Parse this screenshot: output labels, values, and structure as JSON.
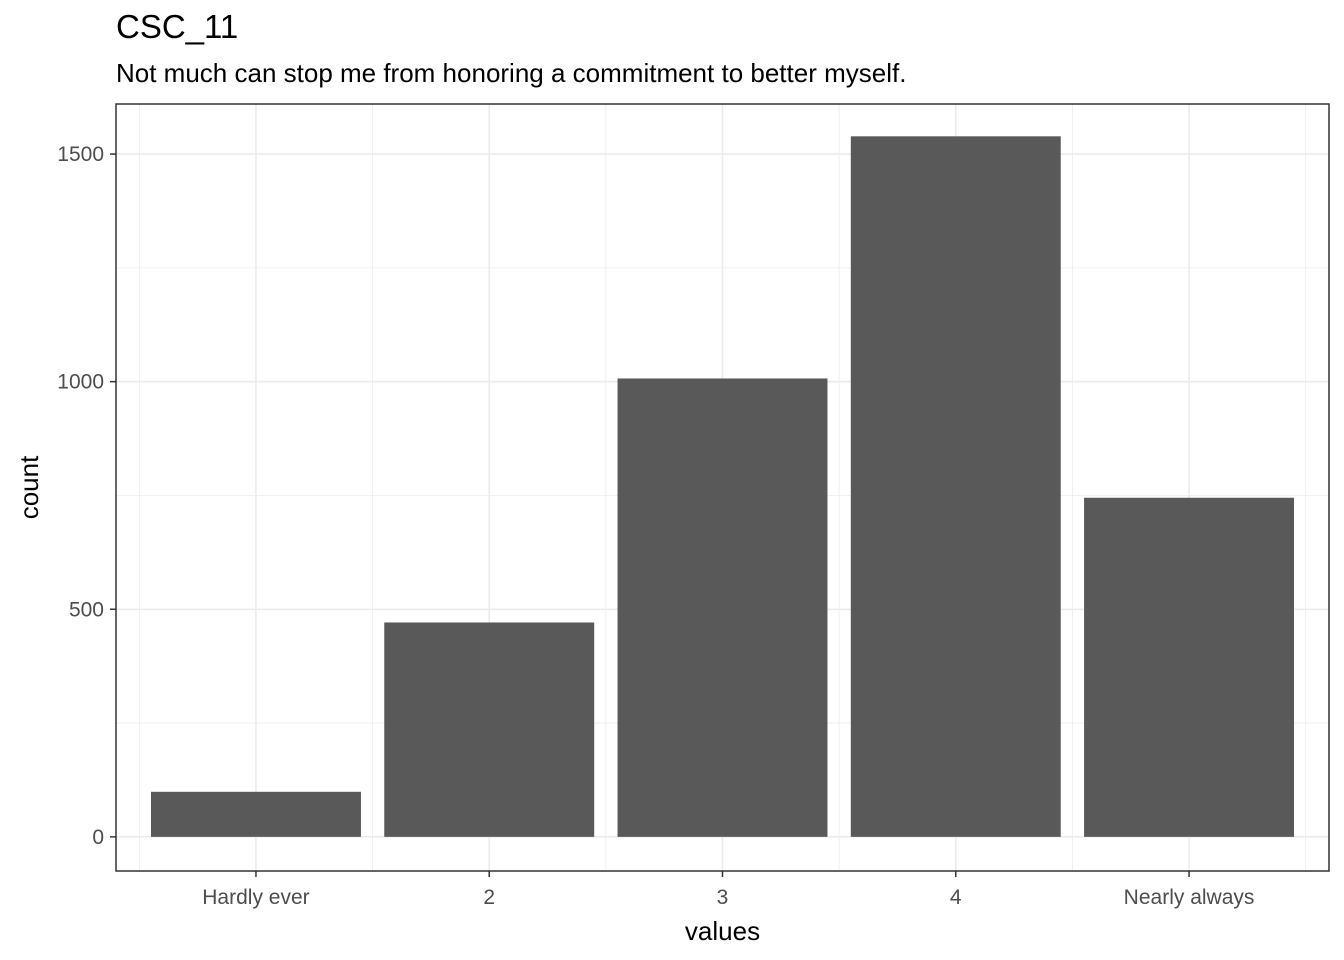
{
  "chart_data": {
    "type": "bar",
    "title": "CSC_11",
    "subtitle": "Not much can stop me from honoring a commitment to better myself.",
    "xlabel": "values",
    "ylabel": "count",
    "categories": [
      "Hardly ever",
      "2",
      "3",
      "4",
      "Nearly always"
    ],
    "values": [
      99,
      471,
      1007,
      1539,
      745
    ],
    "ylim": [
      -75,
      1610
    ],
    "yticks": [
      0,
      500,
      1000,
      1500
    ],
    "ytick_labels": [
      "0",
      "500",
      "1000",
      "1500"
    ],
    "grid": true,
    "bar_color": "#595959",
    "grid_color": "#ebebeb",
    "panel_border_color": "#333333"
  }
}
